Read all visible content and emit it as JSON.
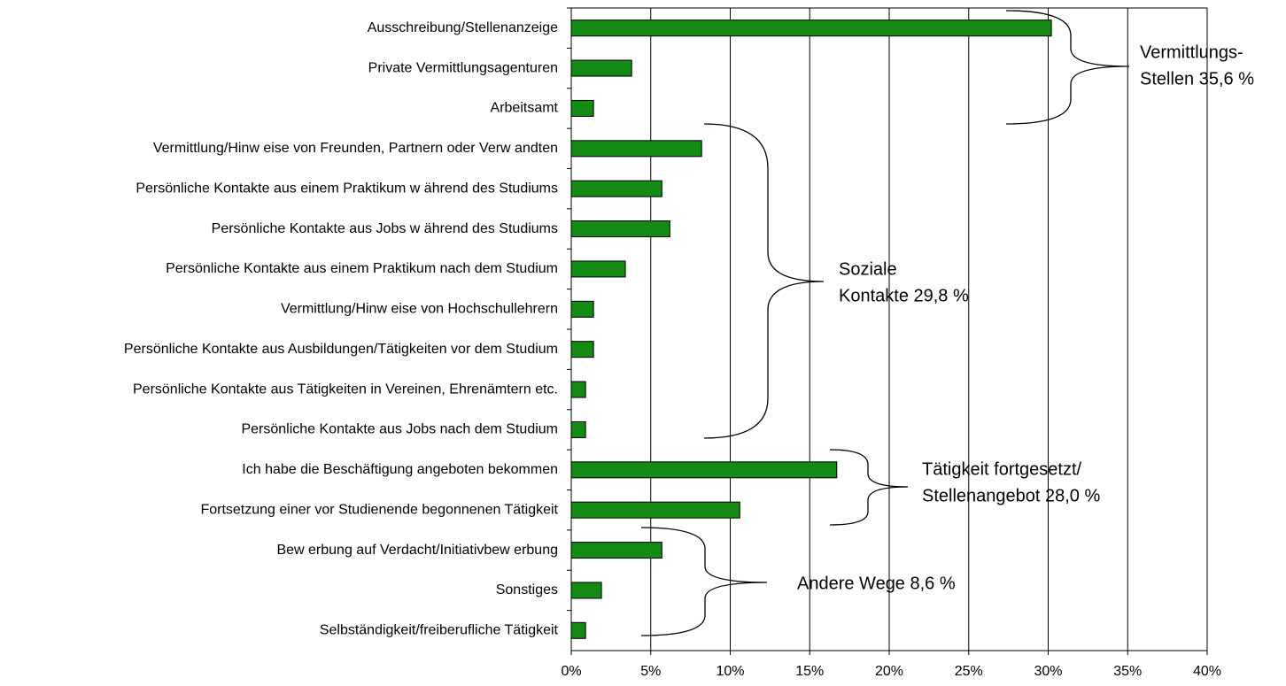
{
  "chart_data": {
    "type": "bar",
    "orientation": "horizontal",
    "categories": [
      "Ausschreibung/Stellenanzeige",
      "Private Vermittlungsagenturen",
      "Arbeitsamt",
      "Vermittlung/Hinw eise von Freunden, Partnern oder Verw andten",
      "Persönliche Kontakte aus einem Praktikum w ährend des Studiums",
      "Persönliche Kontakte aus Jobs w ährend des Studiums",
      "Persönliche Kontakte aus einem Praktikum nach dem Studium",
      "Vermittlung/Hinw eise von Hochschullehrern",
      "Persönliche Kontakte aus Ausbildungen/Tätigkeiten vor dem Studium",
      "Persönliche Kontakte aus Tätigkeiten in Vereinen, Ehrenämtern etc.",
      "Persönliche Kontakte aus Jobs nach dem Studium",
      "Ich habe die Beschäftigung angeboten bekommen",
      "Fortsetzung einer vor Studienende begonnenen Tätigkeit",
      "Bew erbung auf Verdacht/Initiativbew erbung",
      "Sonstiges",
      "Selbständigkeit/freiberufliche Tätigkeit"
    ],
    "values": [
      30.2,
      3.8,
      1.4,
      8.2,
      5.7,
      6.2,
      3.4,
      1.4,
      1.4,
      0.9,
      0.9,
      16.7,
      10.6,
      5.7,
      1.9,
      0.9
    ],
    "color": "#138a13",
    "xlim": [
      0,
      40
    ],
    "xticks": [
      {
        "value": 0,
        "label": "0%"
      },
      {
        "value": 5,
        "label": "5%"
      },
      {
        "value": 10,
        "label": "10%"
      },
      {
        "value": 15,
        "label": "15%"
      },
      {
        "value": 20,
        "label": "20%"
      },
      {
        "value": 25,
        "label": "25%"
      },
      {
        "value": 30,
        "label": "30%"
      },
      {
        "value": 35,
        "label": "35%"
      },
      {
        "value": 40,
        "label": "40%"
      }
    ],
    "grid": true,
    "annotations": [
      {
        "text": [
          "Vermittlungs-",
          "Stellen 35,6 %"
        ]
      },
      {
        "text": [
          "Soziale",
          "Kontakte 29,8 %"
        ]
      },
      {
        "text": [
          "Tätigkeit fortgesetzt/",
          "Stellenangebot 28,0 %"
        ]
      },
      {
        "text": [
          "Andere Wege 8,6 %"
        ]
      }
    ]
  }
}
